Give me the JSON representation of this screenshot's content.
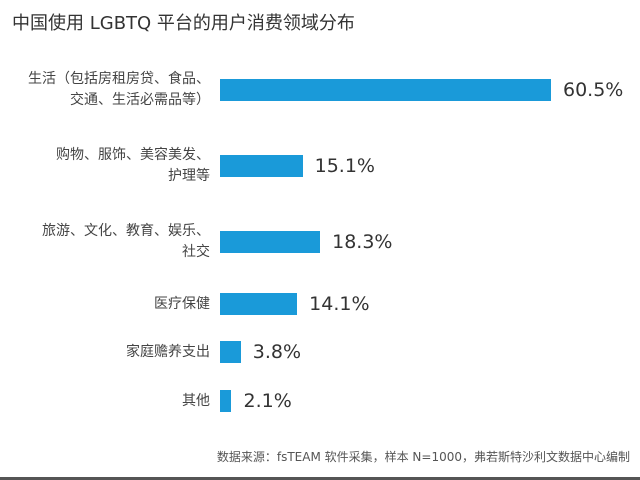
{
  "chart_data": {
    "type": "bar",
    "orientation": "horizontal",
    "title": "中国使用 LGBTQ 平台的用户消费领域分布",
    "categories": [
      [
        "生活（包括房租房贷、食品、",
        "交通、生活必需品等）"
      ],
      [
        "购物、服饰、美容美发、",
        "护理等"
      ],
      [
        "旅游、文化、教育、娱乐、",
        "社交"
      ],
      [
        "医疗保健"
      ],
      [
        "家庭赡养支出"
      ],
      [
        "其他"
      ]
    ],
    "values": [
      60.5,
      15.1,
      18.3,
      14.1,
      3.8,
      2.1
    ],
    "value_labels": [
      "60.5%",
      "15.1%",
      "18.3%",
      "14.1%",
      "3.8%",
      "2.1%"
    ],
    "unit": "%",
    "bar_color": "#1a9ad9",
    "grid": false,
    "source": "数据来源：fsTEAM 软件采集，样本 N=1000，弗若斯特沙利文数据中心编制"
  }
}
